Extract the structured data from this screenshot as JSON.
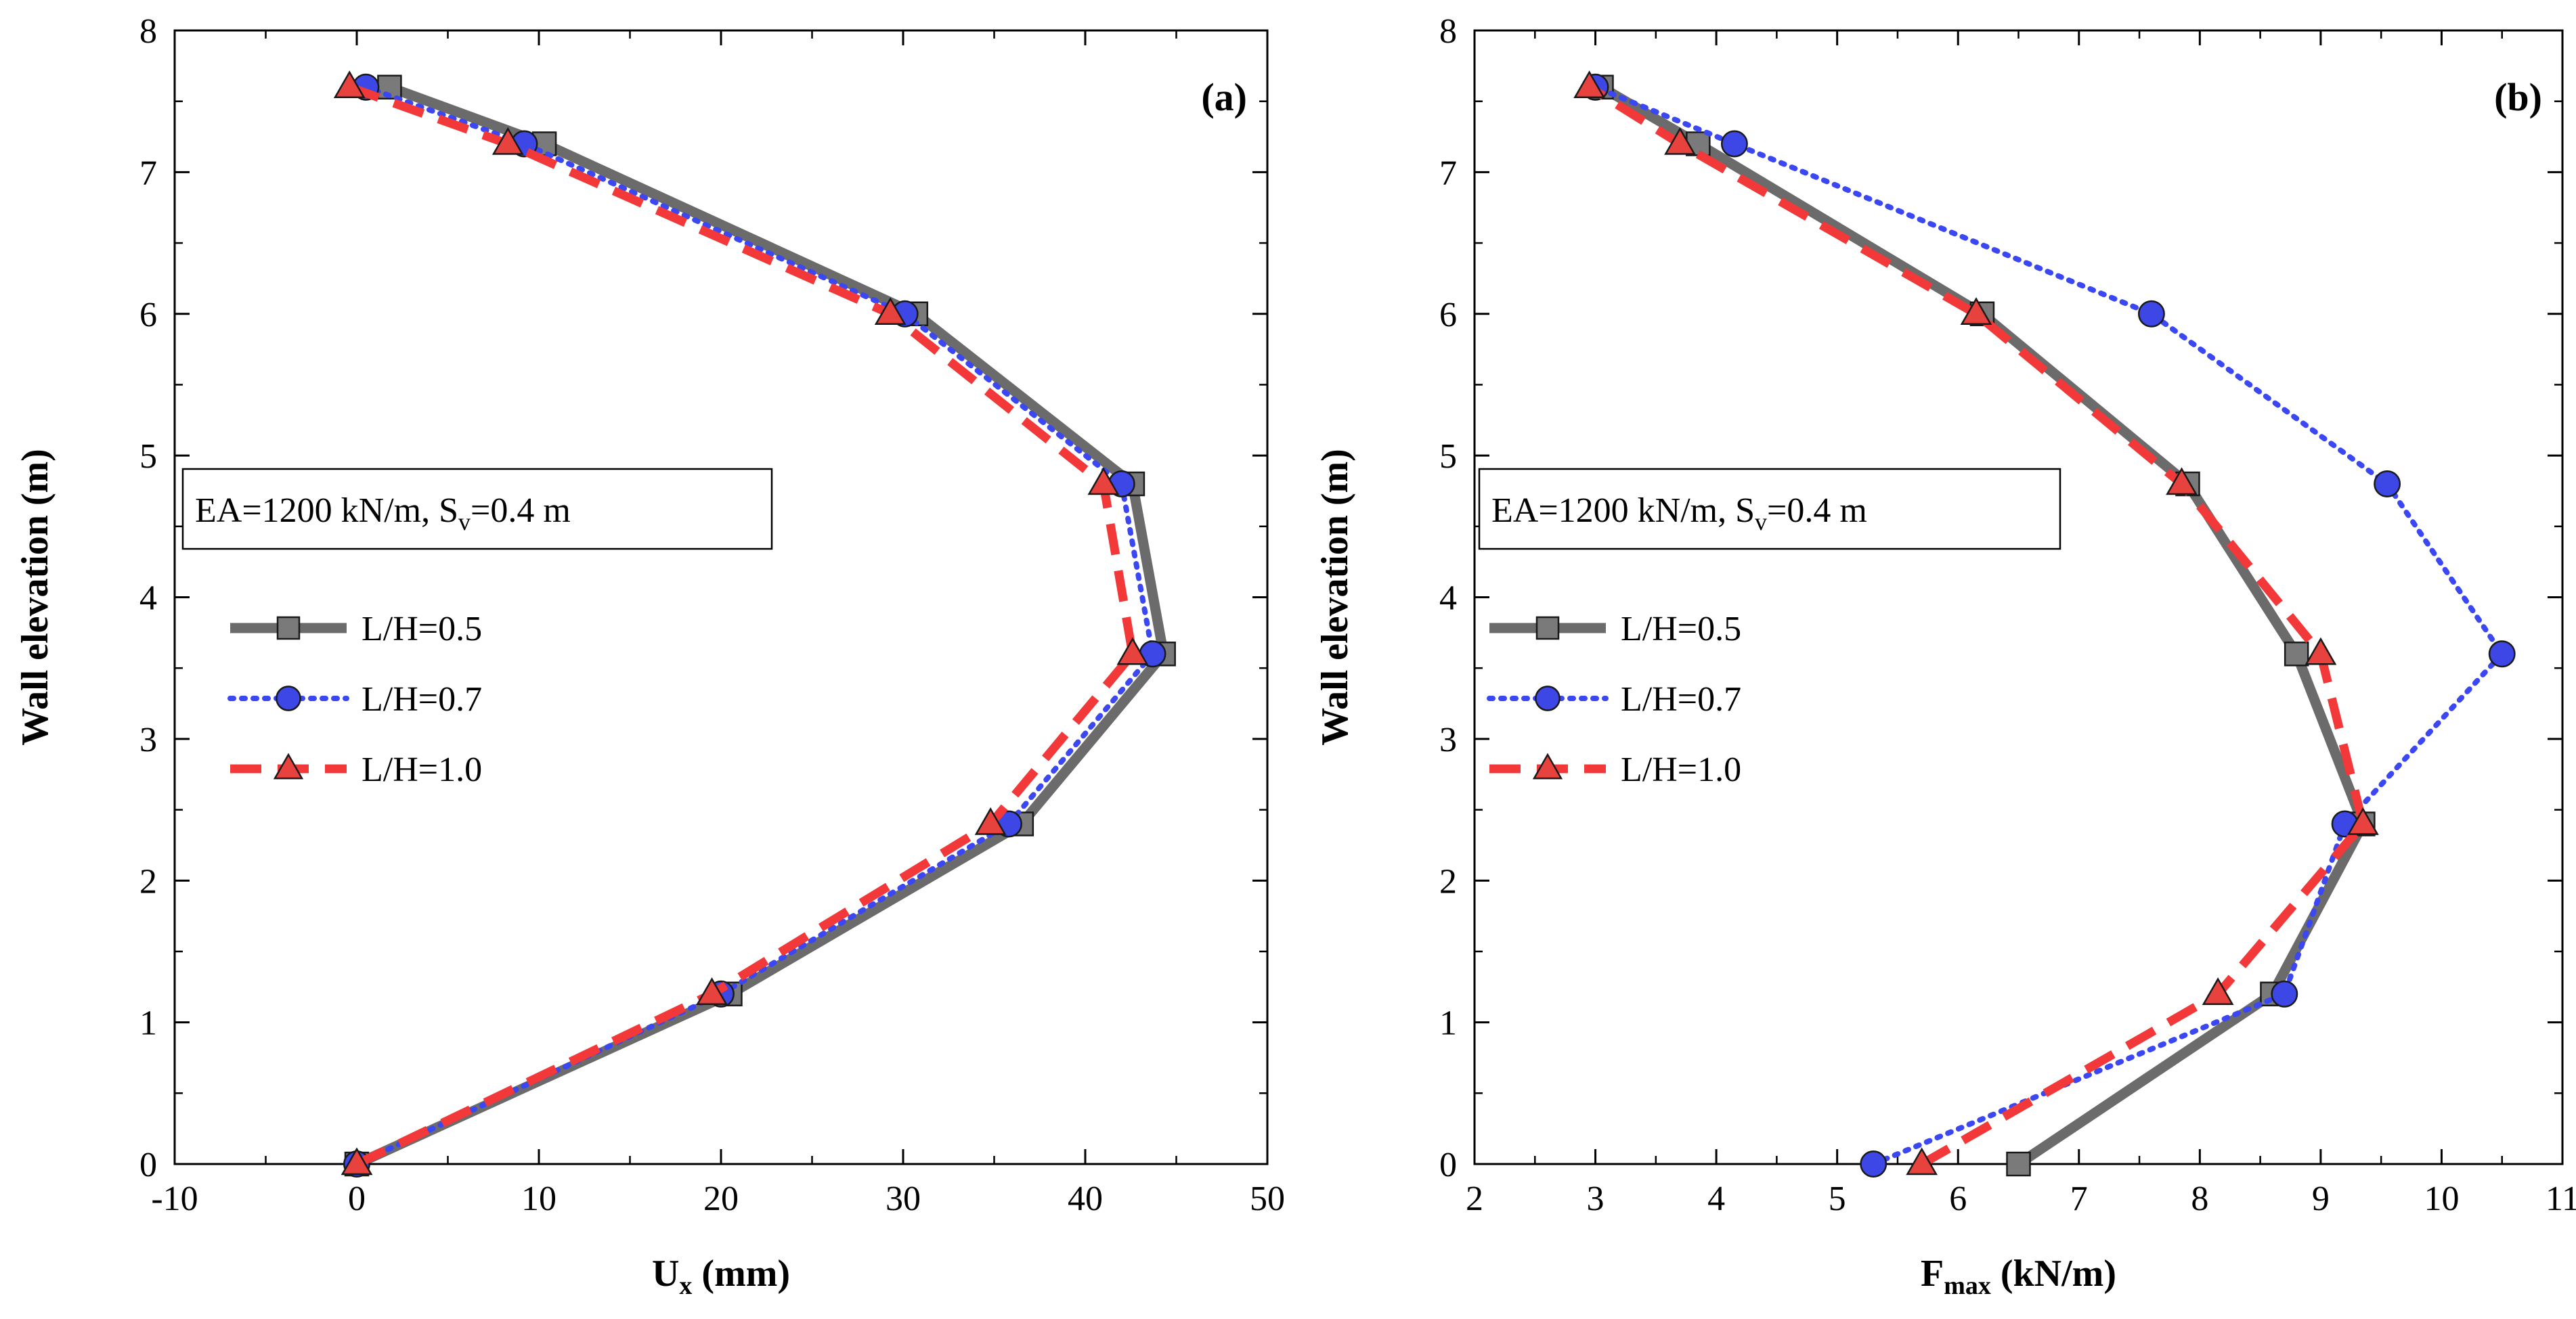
{
  "chart_data": [
    {
      "type": "line",
      "panel_label": "(a)",
      "title": "",
      "xlabel": "U",
      "xlabel_sub": "x",
      "xlabel_unit": " (mm)",
      "ylabel": "Wall elevation (m)",
      "xlim": [
        -10,
        50
      ],
      "ylim": [
        0,
        8
      ],
      "xticks": [
        -10,
        0,
        10,
        20,
        30,
        40,
        50
      ],
      "yticks": [
        0,
        1,
        2,
        3,
        4,
        5,
        6,
        7,
        8
      ],
      "grid": false,
      "legend_position": "left-middle",
      "annotation": {
        "pre": "EA=1200 kN/m, S",
        "sub": "v",
        "post": "=0.4 m"
      },
      "series": [
        {
          "name": "L/H=0.5",
          "style": "solid",
          "marker": "square",
          "color": "#6b6b6b",
          "marker_color": "#7a7a7a",
          "points": [
            [
              0,
              0
            ],
            [
              20.5,
              1.2
            ],
            [
              36.5,
              2.4
            ],
            [
              44.3,
              3.6
            ],
            [
              42.6,
              4.8
            ],
            [
              30.7,
              6.0
            ],
            [
              10.3,
              7.2
            ],
            [
              1.8,
              7.6
            ]
          ]
        },
        {
          "name": "L/H=0.7",
          "style": "dotted",
          "marker": "circle",
          "color": "#3a47f2",
          "marker_color": "#3d47e6",
          "points": [
            [
              0,
              0
            ],
            [
              20.0,
              1.2
            ],
            [
              35.8,
              2.4
            ],
            [
              43.7,
              3.6
            ],
            [
              42.0,
              4.8
            ],
            [
              30.1,
              6.0
            ],
            [
              9.2,
              7.2
            ],
            [
              0.5,
              7.6
            ]
          ]
        },
        {
          "name": "L/H=1.0",
          "style": "dashed",
          "marker": "triangle",
          "color": "#f23838",
          "marker_color": "#e8423f",
          "points": [
            [
              0,
              0
            ],
            [
              19.5,
              1.2
            ],
            [
              34.8,
              2.4
            ],
            [
              42.6,
              3.6
            ],
            [
              41.0,
              4.8
            ],
            [
              29.3,
              6.0
            ],
            [
              8.3,
              7.2
            ],
            [
              -0.4,
              7.6
            ]
          ]
        }
      ]
    },
    {
      "type": "line",
      "panel_label": "(b)",
      "title": "",
      "xlabel": "F",
      "xlabel_sub": "max",
      "xlabel_unit": " (kN/m)",
      "ylabel": "Wall elevation (m)",
      "xlim": [
        2,
        11
      ],
      "ylim": [
        0,
        8
      ],
      "xticks": [
        2,
        3,
        4,
        5,
        6,
        7,
        8,
        9,
        10,
        11
      ],
      "yticks": [
        0,
        1,
        2,
        3,
        4,
        5,
        6,
        7,
        8
      ],
      "grid": false,
      "legend_position": "left-middle",
      "annotation": {
        "pre": "EA=1200 kN/m, S",
        "sub": "v",
        "post": "=0.4 m"
      },
      "series": [
        {
          "name": "L/H=0.5",
          "style": "solid",
          "marker": "square",
          "color": "#6b6b6b",
          "marker_color": "#7a7a7a",
          "points": [
            [
              6.5,
              0
            ],
            [
              8.6,
              1.2
            ],
            [
              9.35,
              2.4
            ],
            [
              8.8,
              3.6
            ],
            [
              7.9,
              4.8
            ],
            [
              6.2,
              6.0
            ],
            [
              3.85,
              7.2
            ],
            [
              3.05,
              7.6
            ]
          ]
        },
        {
          "name": "L/H=0.7",
          "style": "dotted",
          "marker": "circle",
          "color": "#3a47f2",
          "marker_color": "#3d47e6",
          "points": [
            [
              5.3,
              0
            ],
            [
              8.7,
              1.2
            ],
            [
              9.2,
              2.4
            ],
            [
              10.5,
              3.6
            ],
            [
              9.55,
              4.8
            ],
            [
              7.6,
              6.0
            ],
            [
              4.15,
              7.2
            ],
            [
              3.0,
              7.6
            ]
          ]
        },
        {
          "name": "L/H=1.0",
          "style": "dashed",
          "marker": "triangle",
          "color": "#f23838",
          "marker_color": "#e8423f",
          "points": [
            [
              5.7,
              0
            ],
            [
              8.15,
              1.2
            ],
            [
              9.35,
              2.4
            ],
            [
              9.0,
              3.6
            ],
            [
              7.85,
              4.8
            ],
            [
              6.15,
              6.0
            ],
            [
              3.7,
              7.2
            ],
            [
              2.95,
              7.6
            ]
          ]
        }
      ]
    }
  ]
}
